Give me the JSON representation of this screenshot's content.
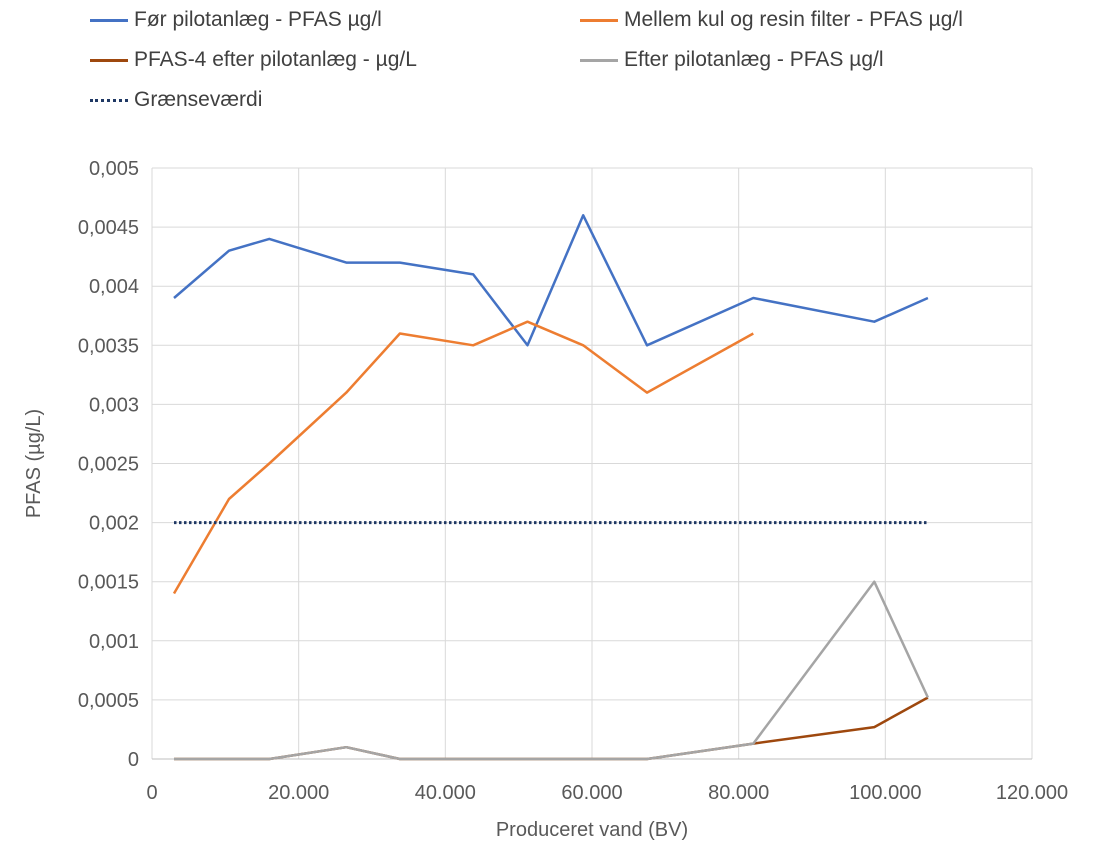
{
  "chart_data": {
    "type": "line",
    "xlabel": "Produceret vand (BV)",
    "ylabel": "PFAS (µg/L)",
    "xlim": [
      0,
      120000
    ],
    "ylim": [
      0,
      0.005
    ],
    "x_ticks": [
      0,
      20000,
      40000,
      60000,
      80000,
      100000,
      120000
    ],
    "x_tick_labels": [
      "0",
      "20.000",
      "40.000",
      "60.000",
      "80.000",
      "100.000",
      "120.000"
    ],
    "y_ticks": [
      0,
      0.0005,
      0.001,
      0.0015,
      0.002,
      0.0025,
      0.003,
      0.0035,
      0.004,
      0.0045,
      0.005
    ],
    "y_tick_labels": [
      "0",
      "0,0005",
      "0,001",
      "0,0015",
      "0,002",
      "0,0025",
      "0,003",
      "0,0035",
      "0,004",
      "0,0045",
      "0,005"
    ],
    "grid": true,
    "legend_position": "top",
    "series": [
      {
        "name": "Før pilotanlæg - PFAS µg/l",
        "color": "#4472C4",
        "style": "solid",
        "points": [
          [
            3000,
            0.0039
          ],
          [
            10500,
            0.0043
          ],
          [
            16000,
            0.0044
          ],
          [
            26500,
            0.0042
          ],
          [
            33800,
            0.0042
          ],
          [
            43800,
            0.0041
          ],
          [
            51200,
            0.0035
          ],
          [
            58800,
            0.0046
          ],
          [
            67500,
            0.0035
          ],
          [
            82000,
            0.0039
          ],
          [
            98500,
            0.0037
          ],
          [
            105800,
            0.0039
          ]
        ]
      },
      {
        "name": "Mellem kul og resin filter - PFAS µg/l",
        "color": "#ED7D31",
        "style": "solid",
        "points": [
          [
            3000,
            0.0014
          ],
          [
            10500,
            0.0022
          ],
          [
            16000,
            0.0025
          ],
          [
            26500,
            0.0031
          ],
          [
            33800,
            0.0036
          ],
          [
            43800,
            0.0035
          ],
          [
            51200,
            0.0037
          ],
          [
            58800,
            0.0035
          ],
          [
            67500,
            0.0031
          ],
          [
            82000,
            0.0036
          ]
        ]
      },
      {
        "name": "PFAS-4 efter pilotanlæg - µg/L",
        "color": "#9E480E",
        "style": "solid",
        "points": [
          [
            3000,
            0
          ],
          [
            10500,
            0
          ],
          [
            16000,
            0
          ],
          [
            26500,
            0.0001
          ],
          [
            33800,
            0
          ],
          [
            43800,
            0
          ],
          [
            51200,
            0
          ],
          [
            58800,
            0
          ],
          [
            67500,
            0
          ],
          [
            82000,
            0.00013
          ],
          [
            98500,
            0.00027
          ],
          [
            105800,
            0.00052
          ]
        ]
      },
      {
        "name": "Efter pilotanlæg - PFAS µg/l",
        "color": "#A5A5A5",
        "style": "solid",
        "points": [
          [
            3000,
            0
          ],
          [
            10500,
            0
          ],
          [
            16000,
            0
          ],
          [
            26500,
            0.0001
          ],
          [
            33800,
            0
          ],
          [
            43800,
            0
          ],
          [
            51200,
            0
          ],
          [
            58800,
            0
          ],
          [
            67500,
            0
          ],
          [
            82000,
            0.00013
          ],
          [
            98500,
            0.0015
          ],
          [
            105800,
            0.00052
          ]
        ]
      },
      {
        "name": "Grænseværdi",
        "color": "#1F3864",
        "style": "dotted",
        "points": [
          [
            3000,
            0.002
          ],
          [
            105800,
            0.002
          ]
        ]
      }
    ]
  }
}
